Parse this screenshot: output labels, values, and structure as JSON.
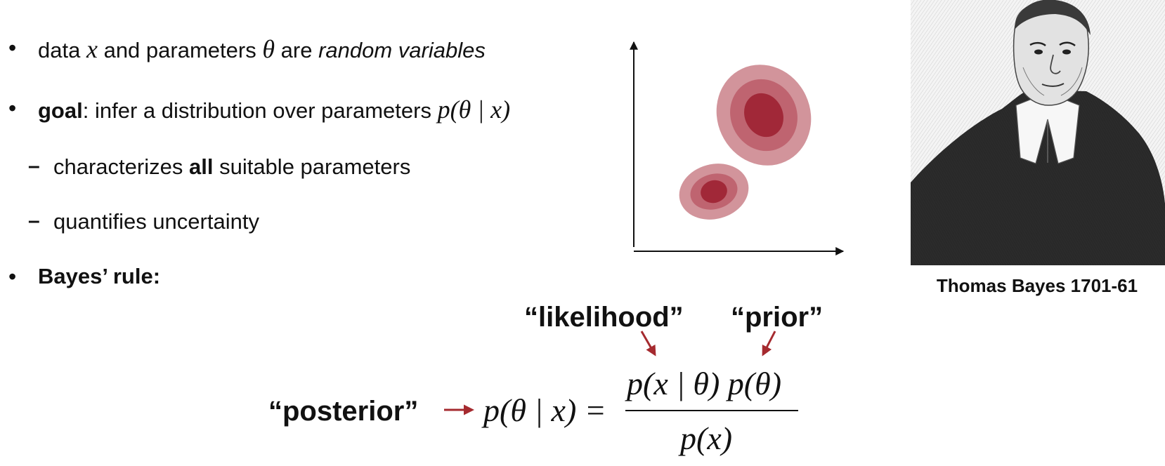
{
  "bullets": {
    "b1": {
      "t1": "data",
      "x": "x",
      "t2": "and parameters",
      "theta": "θ",
      "t3": "are",
      "t4": "random variables"
    },
    "b2": {
      "bold": "goal",
      "t1": ": infer a distribution over parameters",
      "math": "p(θ | x)"
    },
    "sub1": {
      "t1": "characterizes",
      "bold": "all",
      "t2": "suitable parameters"
    },
    "sub2": {
      "t1": "quantifies uncertainty"
    },
    "b3": {
      "bold": "Bayes’ rule:"
    }
  },
  "equation": {
    "posterior_label": "“posterior”",
    "likelihood_label": "“likelihood”",
    "prior_label": "“prior”",
    "lhs": "p(θ | x) =",
    "numerator": "p(x | θ) p(θ)",
    "denominator": "p(x)"
  },
  "figure": {
    "caption": "Thomas Bayes 1701-61"
  },
  "colors": {
    "accent_red": "#a52a2f",
    "blob_outer": "#d2949b",
    "blob_mid": "#bf6470",
    "blob_inner": "#a12838"
  }
}
